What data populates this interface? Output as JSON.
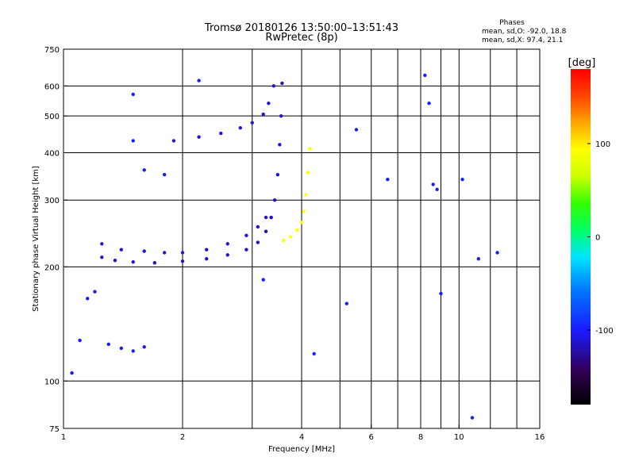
{
  "chart_data": {
    "type": "scatter",
    "title": "Tromsø 20180126 13:50:00–13:51:43",
    "subtitle": "RwPretec (8p)",
    "xlabel": "Frequency [MHz]",
    "ylabel": "Stationary phase Virtual Height [km]",
    "x_scale": "log",
    "y_scale": "log",
    "xlim": [
      1,
      16
    ],
    "ylim": [
      75,
      750
    ],
    "x_ticks": [
      1,
      2,
      4,
      6,
      8,
      10,
      16
    ],
    "x_tick_labels": [
      "1",
      "2",
      "4",
      "6",
      "8",
      "10",
      "16"
    ],
    "y_ticks": [
      75,
      100,
      200,
      300,
      400,
      500,
      600,
      750
    ],
    "y_tick_labels": [
      "75",
      "100",
      "200",
      "300",
      "400",
      "500",
      "600",
      "750"
    ],
    "grid": true,
    "stats": {
      "title": "Phases",
      "line_o": "mean, sd,O: -92.0, 18.8",
      "line_x": "mean, sd,X:  97.4, 21.1"
    },
    "colorbar": {
      "label": "[deg]",
      "range": [
        -180,
        180
      ],
      "tick_values": [
        100,
        0,
        -100
      ],
      "tick_labels": [
        "100",
        "0",
        "-100"
      ],
      "colormap": "rainbow"
    },
    "series": [
      {
        "trace": "o-mode lower F layer",
        "phase_deg": -115,
        "x": [
          1.25,
          1.35,
          1.5,
          1.7,
          2.0,
          2.3,
          2.6,
          2.9,
          3.1,
          3.25,
          3.35
        ],
        "y": [
          212,
          208,
          206,
          205,
          207,
          210,
          215,
          222,
          232,
          248,
          270
        ]
      },
      {
        "trace": "o-mode upper F layer",
        "phase_deg": -110,
        "x": [
          1.25,
          1.4,
          1.6,
          1.8,
          2.0,
          2.3,
          2.6,
          2.9,
          3.1,
          3.25
        ],
        "y": [
          230,
          222,
          220,
          218,
          218,
          222,
          230,
          242,
          255,
          270
        ]
      },
      {
        "trace": "o-mode F2 cusp",
        "phase_deg": -112,
        "x": [
          3.35,
          3.42,
          3.48,
          3.52,
          3.55,
          3.57
        ],
        "y": [
          270,
          300,
          350,
          420,
          500,
          610
        ]
      },
      {
        "trace": "o-mode second hop",
        "phase_deg": -110,
        "x": [
          1.9,
          2.2,
          2.5,
          2.8,
          3.0,
          3.2,
          3.3,
          3.4
        ],
        "y": [
          430,
          440,
          450,
          465,
          480,
          505,
          540,
          600
        ]
      },
      {
        "trace": "x-mode F layer",
        "phase_deg": 100,
        "x": [
          3.6,
          3.75,
          3.9,
          4.0,
          4.05,
          4.1,
          4.15,
          4.2
        ],
        "y": [
          235,
          240,
          250,
          262,
          280,
          310,
          355,
          410
        ]
      },
      {
        "trace": "low frequency echoes",
        "phase_deg": -105,
        "x": [
          1.05,
          1.1,
          1.15,
          1.2,
          1.3,
          1.4,
          1.5,
          1.6
        ],
        "y": [
          105,
          128,
          165,
          172,
          125,
          122,
          120,
          123
        ]
      },
      {
        "trace": "scattered points",
        "phase_deg": -100,
        "x": [
          1.5,
          1.5,
          1.6,
          1.8,
          2.2,
          3.2,
          4.3,
          5.2,
          5.5,
          6.6,
          8.2,
          8.4,
          8.6,
          8.8,
          9.0,
          10.2,
          10.8,
          11.2,
          12.5
        ],
        "y": [
          570,
          430,
          360,
          350,
          620,
          185,
          118,
          160,
          460,
          340,
          640,
          540,
          330,
          320,
          170,
          340,
          80,
          210,
          218
        ]
      }
    ]
  }
}
